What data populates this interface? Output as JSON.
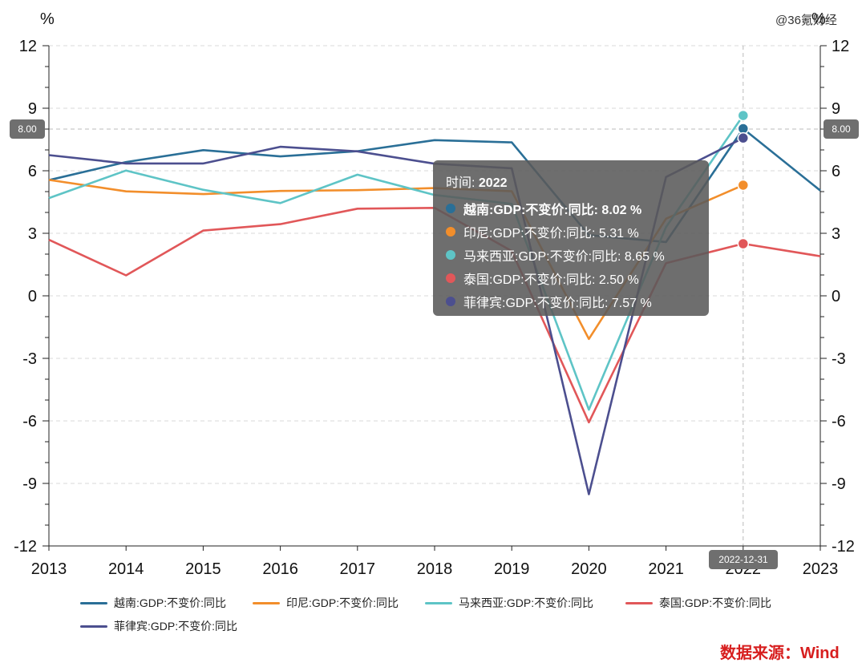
{
  "watermark": "@36氪财经",
  "source": "数据来源：Wind",
  "axis_badges": {
    "left": "8.00",
    "right": "8.00",
    "bottom": "2022-12-31"
  },
  "tooltip": {
    "time_label": "时间: ",
    "time_value": "2022",
    "rows": [
      {
        "text": "越南:GDP:不变价:同比: 8.02  %",
        "color": "#2a6f97",
        "bold": true
      },
      {
        "text": "印尼:GDP:不变价:同比: 5.31  %",
        "color": "#f28e2b",
        "bold": false
      },
      {
        "text": "马来西亚:GDP:不变价:同比: 8.65  %",
        "color": "#5ec4c6",
        "bold": false
      },
      {
        "text": "泰国:GDP:不变价:同比: 2.50  %",
        "color": "#e15759",
        "bold": false
      },
      {
        "text": "菲律宾:GDP:不变价:同比: 7.57  %",
        "color": "#4c4f8f",
        "bold": false
      }
    ]
  },
  "chart_data": {
    "type": "line",
    "title": "",
    "xlabel": "",
    "ylabel": "%",
    "ylabel_right": "%",
    "x": [
      2013,
      2014,
      2015,
      2016,
      2017,
      2018,
      2019,
      2020,
      2021,
      2022,
      2023
    ],
    "ylim": [
      -12,
      12
    ],
    "yticks": [
      -12,
      -9,
      -6,
      -3,
      0,
      3,
      6,
      9,
      12
    ],
    "grid": true,
    "highlight_x": 2022,
    "legend_position": "bottom",
    "series": [
      {
        "name": "越南:GDP:不变价:同比",
        "color": "#2a6f97",
        "values": [
          5.55,
          6.42,
          6.99,
          6.69,
          6.94,
          7.47,
          7.36,
          2.91,
          2.58,
          8.02,
          5.05
        ]
      },
      {
        "name": "印尼:GDP:不变价:同比",
        "color": "#f28e2b",
        "values": [
          5.56,
          5.01,
          4.88,
          5.03,
          5.07,
          5.17,
          5.02,
          -2.07,
          3.7,
          5.31,
          null
        ]
      },
      {
        "name": "马来西亚:GDP:不变价:同比",
        "color": "#5ec4c6",
        "values": [
          4.69,
          6.01,
          5.09,
          4.45,
          5.81,
          4.84,
          4.41,
          -5.46,
          3.3,
          8.65,
          null
        ]
      },
      {
        "name": "泰国:GDP:不变价:同比",
        "color": "#e15759",
        "values": [
          2.69,
          0.98,
          3.13,
          3.44,
          4.18,
          4.22,
          2.15,
          -6.07,
          1.57,
          2.5,
          1.9
        ]
      },
      {
        "name": "菲律宾:GDP:不变价:同比",
        "color": "#4c4f8f",
        "values": [
          6.75,
          6.35,
          6.35,
          7.15,
          6.93,
          6.34,
          6.12,
          -9.52,
          5.7,
          7.57,
          null
        ]
      }
    ]
  }
}
